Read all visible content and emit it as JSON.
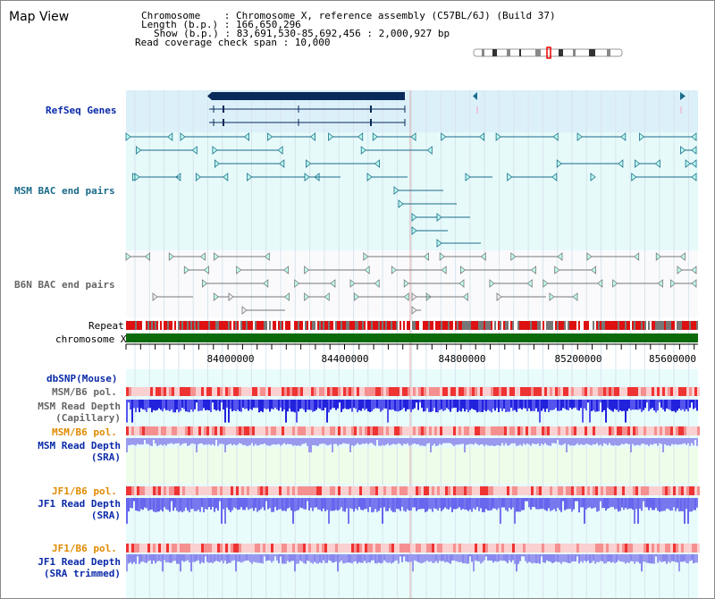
{
  "header": {
    "title": "Map View",
    "info_lines": [
      "Chromosome    : Chromosome X, reference assembly (C57BL/6J) (Build 37)",
      "Length (b.p.) : 166,650,296",
      "Show (b.p.) : 83,691,530-85,692,456 : 2,000,927 bp",
      "Read coverage check span : 10,000"
    ]
  },
  "tracks": {
    "refseq": "RefSeq Genes",
    "msm_bac": "MSM BAC end pairs",
    "b6n_bac": "B6N BAC end pairs",
    "repeat": "Repeat",
    "chromosome": "chromosome X",
    "dbsnp": "dbSNP(Mouse)",
    "msm_b6_pol_1": "MSM/B6 pol.",
    "msm_depth_cap_1": "MSM Read Depth",
    "msm_depth_cap_2": "(Capillary)",
    "msm_b6_pol_2": "MSM/B6 pol.",
    "msm_depth_sra_1": "MSM Read Depth",
    "msm_depth_sra_2": "(SRA)",
    "jf1_b6_pol_1": "JF1/B6 pol.",
    "jf1_depth_1": "JF1 Read Depth",
    "jf1_depth_2": "(SRA)",
    "jf1_b6_pol_2": "JF1/B6 pol.",
    "jf1_depth_trim_1": "JF1 Read Depth",
    "jf1_depth_trim_2": "(SRA trimmed)"
  },
  "axis": {
    "ticks": [
      "84000000",
      "84400000",
      "84800000",
      "85200000",
      "85600000"
    ]
  },
  "colors": {
    "refseq_bg": "#dcf0fa",
    "bac_bg": "#e6fafa",
    "gene": "#0a2a5a",
    "bac_pair": "#1b6b8a",
    "b6n_pair": "#777777",
    "repeat_red": "#dd1111",
    "repeat_gray": "#777777",
    "chrom": "#0b6b0b",
    "pol_pink": "#f5a0a0",
    "depth_blue": "#3333dd",
    "depth_light": "#8888ee",
    "orange": "#e08a00"
  }
}
